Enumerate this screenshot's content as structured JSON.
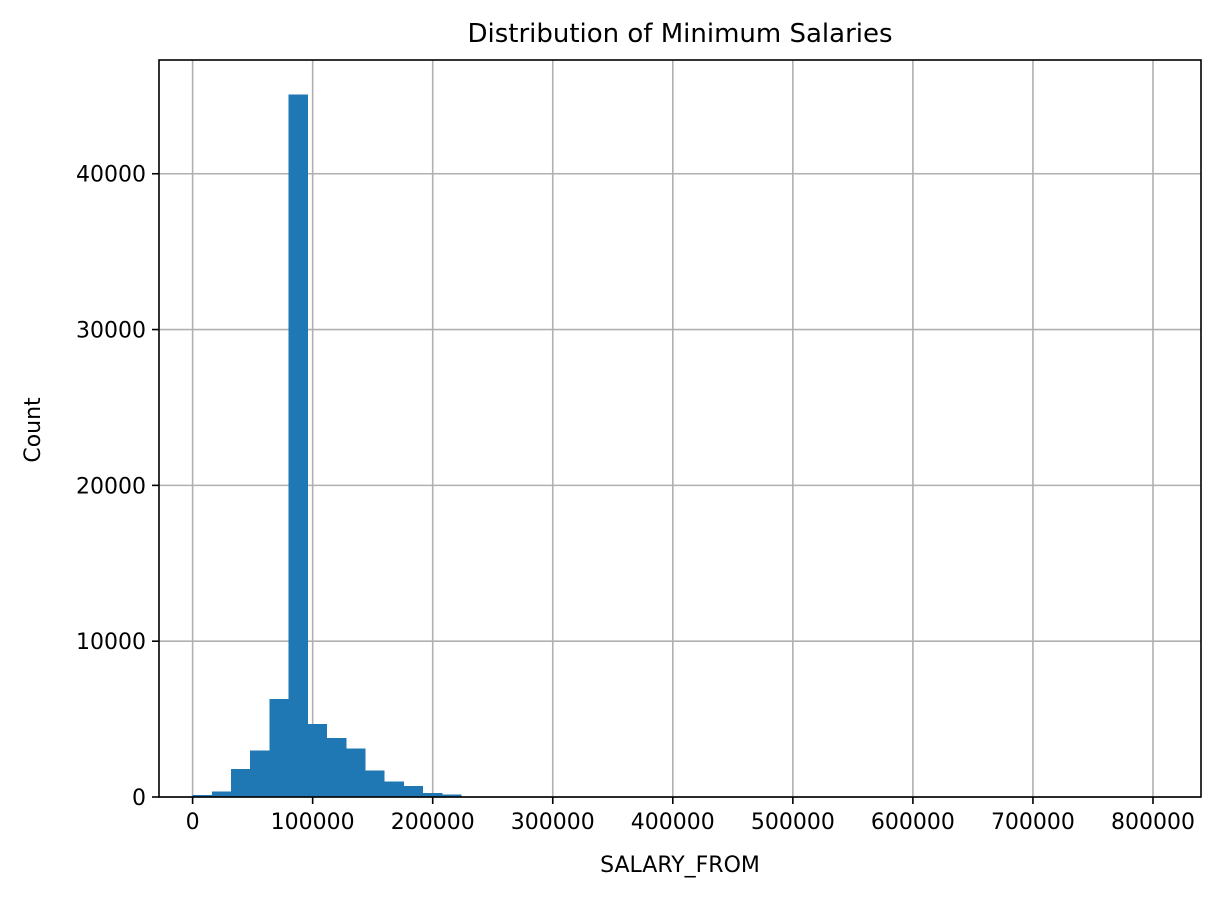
{
  "chart_data": {
    "type": "bar",
    "title": "Distribution of Minimum Salaries",
    "xlabel": "SALARY_FROM",
    "ylabel": "Count",
    "xlim": [
      -28000,
      840000
    ],
    "ylim": [
      0,
      47300
    ],
    "xticks": [
      0,
      100000,
      200000,
      300000,
      400000,
      500000,
      600000,
      700000,
      800000
    ],
    "yticks": [
      0,
      10000,
      20000,
      30000,
      40000
    ],
    "grid": true,
    "bar_color": "#1f77b4",
    "bins": [
      {
        "x0": 0,
        "x1": 16000,
        "count": 120
      },
      {
        "x0": 16000,
        "x1": 32000,
        "count": 350
      },
      {
        "x0": 32000,
        "x1": 48000,
        "count": 1800
      },
      {
        "x0": 48000,
        "x1": 64000,
        "count": 3000
      },
      {
        "x0": 64000,
        "x1": 80000,
        "count": 6300
      },
      {
        "x0": 80000,
        "x1": 96000,
        "count": 45100
      },
      {
        "x0": 96000,
        "x1": 112000,
        "count": 4700
      },
      {
        "x0": 112000,
        "x1": 128000,
        "count": 3800
      },
      {
        "x0": 128000,
        "x1": 144000,
        "count": 3100
      },
      {
        "x0": 144000,
        "x1": 160000,
        "count": 1700
      },
      {
        "x0": 160000,
        "x1": 176000,
        "count": 1000
      },
      {
        "x0": 176000,
        "x1": 192000,
        "count": 700
      },
      {
        "x0": 192000,
        "x1": 208000,
        "count": 250
      },
      {
        "x0": 208000,
        "x1": 224000,
        "count": 150
      },
      {
        "x0": 224000,
        "x1": 240000,
        "count": 40
      },
      {
        "x0": 240000,
        "x1": 256000,
        "count": 20
      },
      {
        "x0": 256000,
        "x1": 272000,
        "count": 10
      },
      {
        "x0": 272000,
        "x1": 288000,
        "count": 5
      }
    ]
  }
}
